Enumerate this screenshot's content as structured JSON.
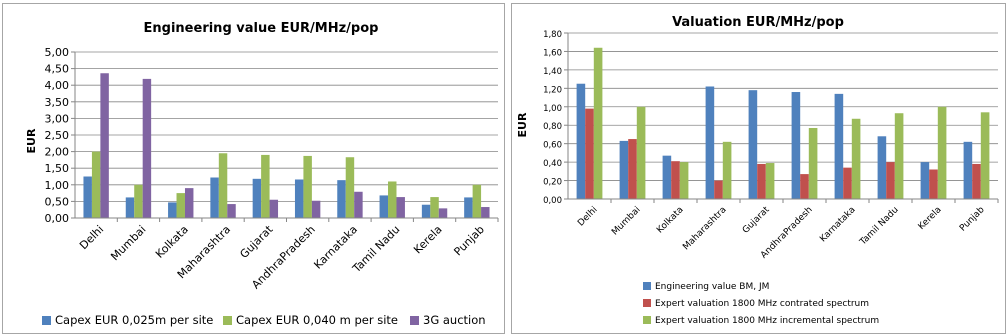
{
  "chart_data": [
    {
      "type": "bar",
      "title": "Engineering  value EUR/MHz/pop",
      "ylabel": "EUR",
      "xlabel": "",
      "ylim": [
        0,
        5
      ],
      "ytick_step": 0.5,
      "ytick_labels": [
        "0,00",
        "0,50",
        "1,00",
        "1,50",
        "2,00",
        "2,50",
        "3,00",
        "3,50",
        "4,00",
        "4,50",
        "5,00"
      ],
      "grid": true,
      "legend_position": "bottom",
      "categories": [
        "Delhi",
        "Mumbai",
        "Kolkata",
        "Maharashtra",
        "Gujarat",
        "AndhraPradesh",
        "Karnataka",
        "Tamil Nadu",
        "Kerela",
        "Punjab"
      ],
      "series": [
        {
          "name": "Capex EUR 0,025m per site",
          "color": "#4f81bd",
          "values": [
            1.25,
            0.62,
            0.47,
            1.22,
            1.18,
            1.16,
            1.14,
            0.68,
            0.4,
            0.62
          ]
        },
        {
          "name": "Capex EUR 0,040 m per site",
          "color": "#9bbb59",
          "values": [
            2.0,
            1.0,
            0.75,
            1.95,
            1.9,
            1.87,
            1.83,
            1.1,
            0.63,
            1.0
          ]
        },
        {
          "name": "3G auction",
          "color": "#8064a2",
          "values": [
            4.36,
            4.19,
            0.9,
            0.42,
            0.55,
            0.52,
            0.79,
            0.63,
            0.29,
            0.33
          ]
        }
      ]
    },
    {
      "type": "bar",
      "title": "Valuation  EUR/MHz/pop",
      "ylabel": "EUR",
      "xlabel": "",
      "ylim": [
        0,
        1.8
      ],
      "ytick_step": 0.2,
      "ytick_labels": [
        "0,00",
        "0,20",
        "0,40",
        "0,60",
        "0,80",
        "1,00",
        "1,20",
        "1,40",
        "1,60",
        "1,80"
      ],
      "grid": true,
      "legend_position": "bottom",
      "categories": [
        "Delhi",
        "Mumbai",
        "Kolkata",
        "Maharashtra",
        "Gujarat",
        "AndhraPradesh",
        "Karnataka",
        "Tamil Nadu",
        "Kerela",
        "Punjab"
      ],
      "series": [
        {
          "name": "Engineering value  BM, JM",
          "color": "#4f81bd",
          "values": [
            1.25,
            0.63,
            0.47,
            1.22,
            1.18,
            1.16,
            1.14,
            0.68,
            0.4,
            0.62
          ]
        },
        {
          "name": "Expert valuation 1800 MHz contrated spectrum",
          "color": "#c0504d",
          "values": [
            0.98,
            0.65,
            0.41,
            0.2,
            0.38,
            0.27,
            0.34,
            0.4,
            0.32,
            0.38
          ]
        },
        {
          "name": "Expert valuation 1800 MHz incremental spectrum",
          "color": "#9bbb59",
          "values": [
            1.64,
            1.0,
            0.4,
            0.62,
            0.39,
            0.77,
            0.87,
            0.93,
            1.0,
            0.94
          ]
        }
      ]
    }
  ]
}
